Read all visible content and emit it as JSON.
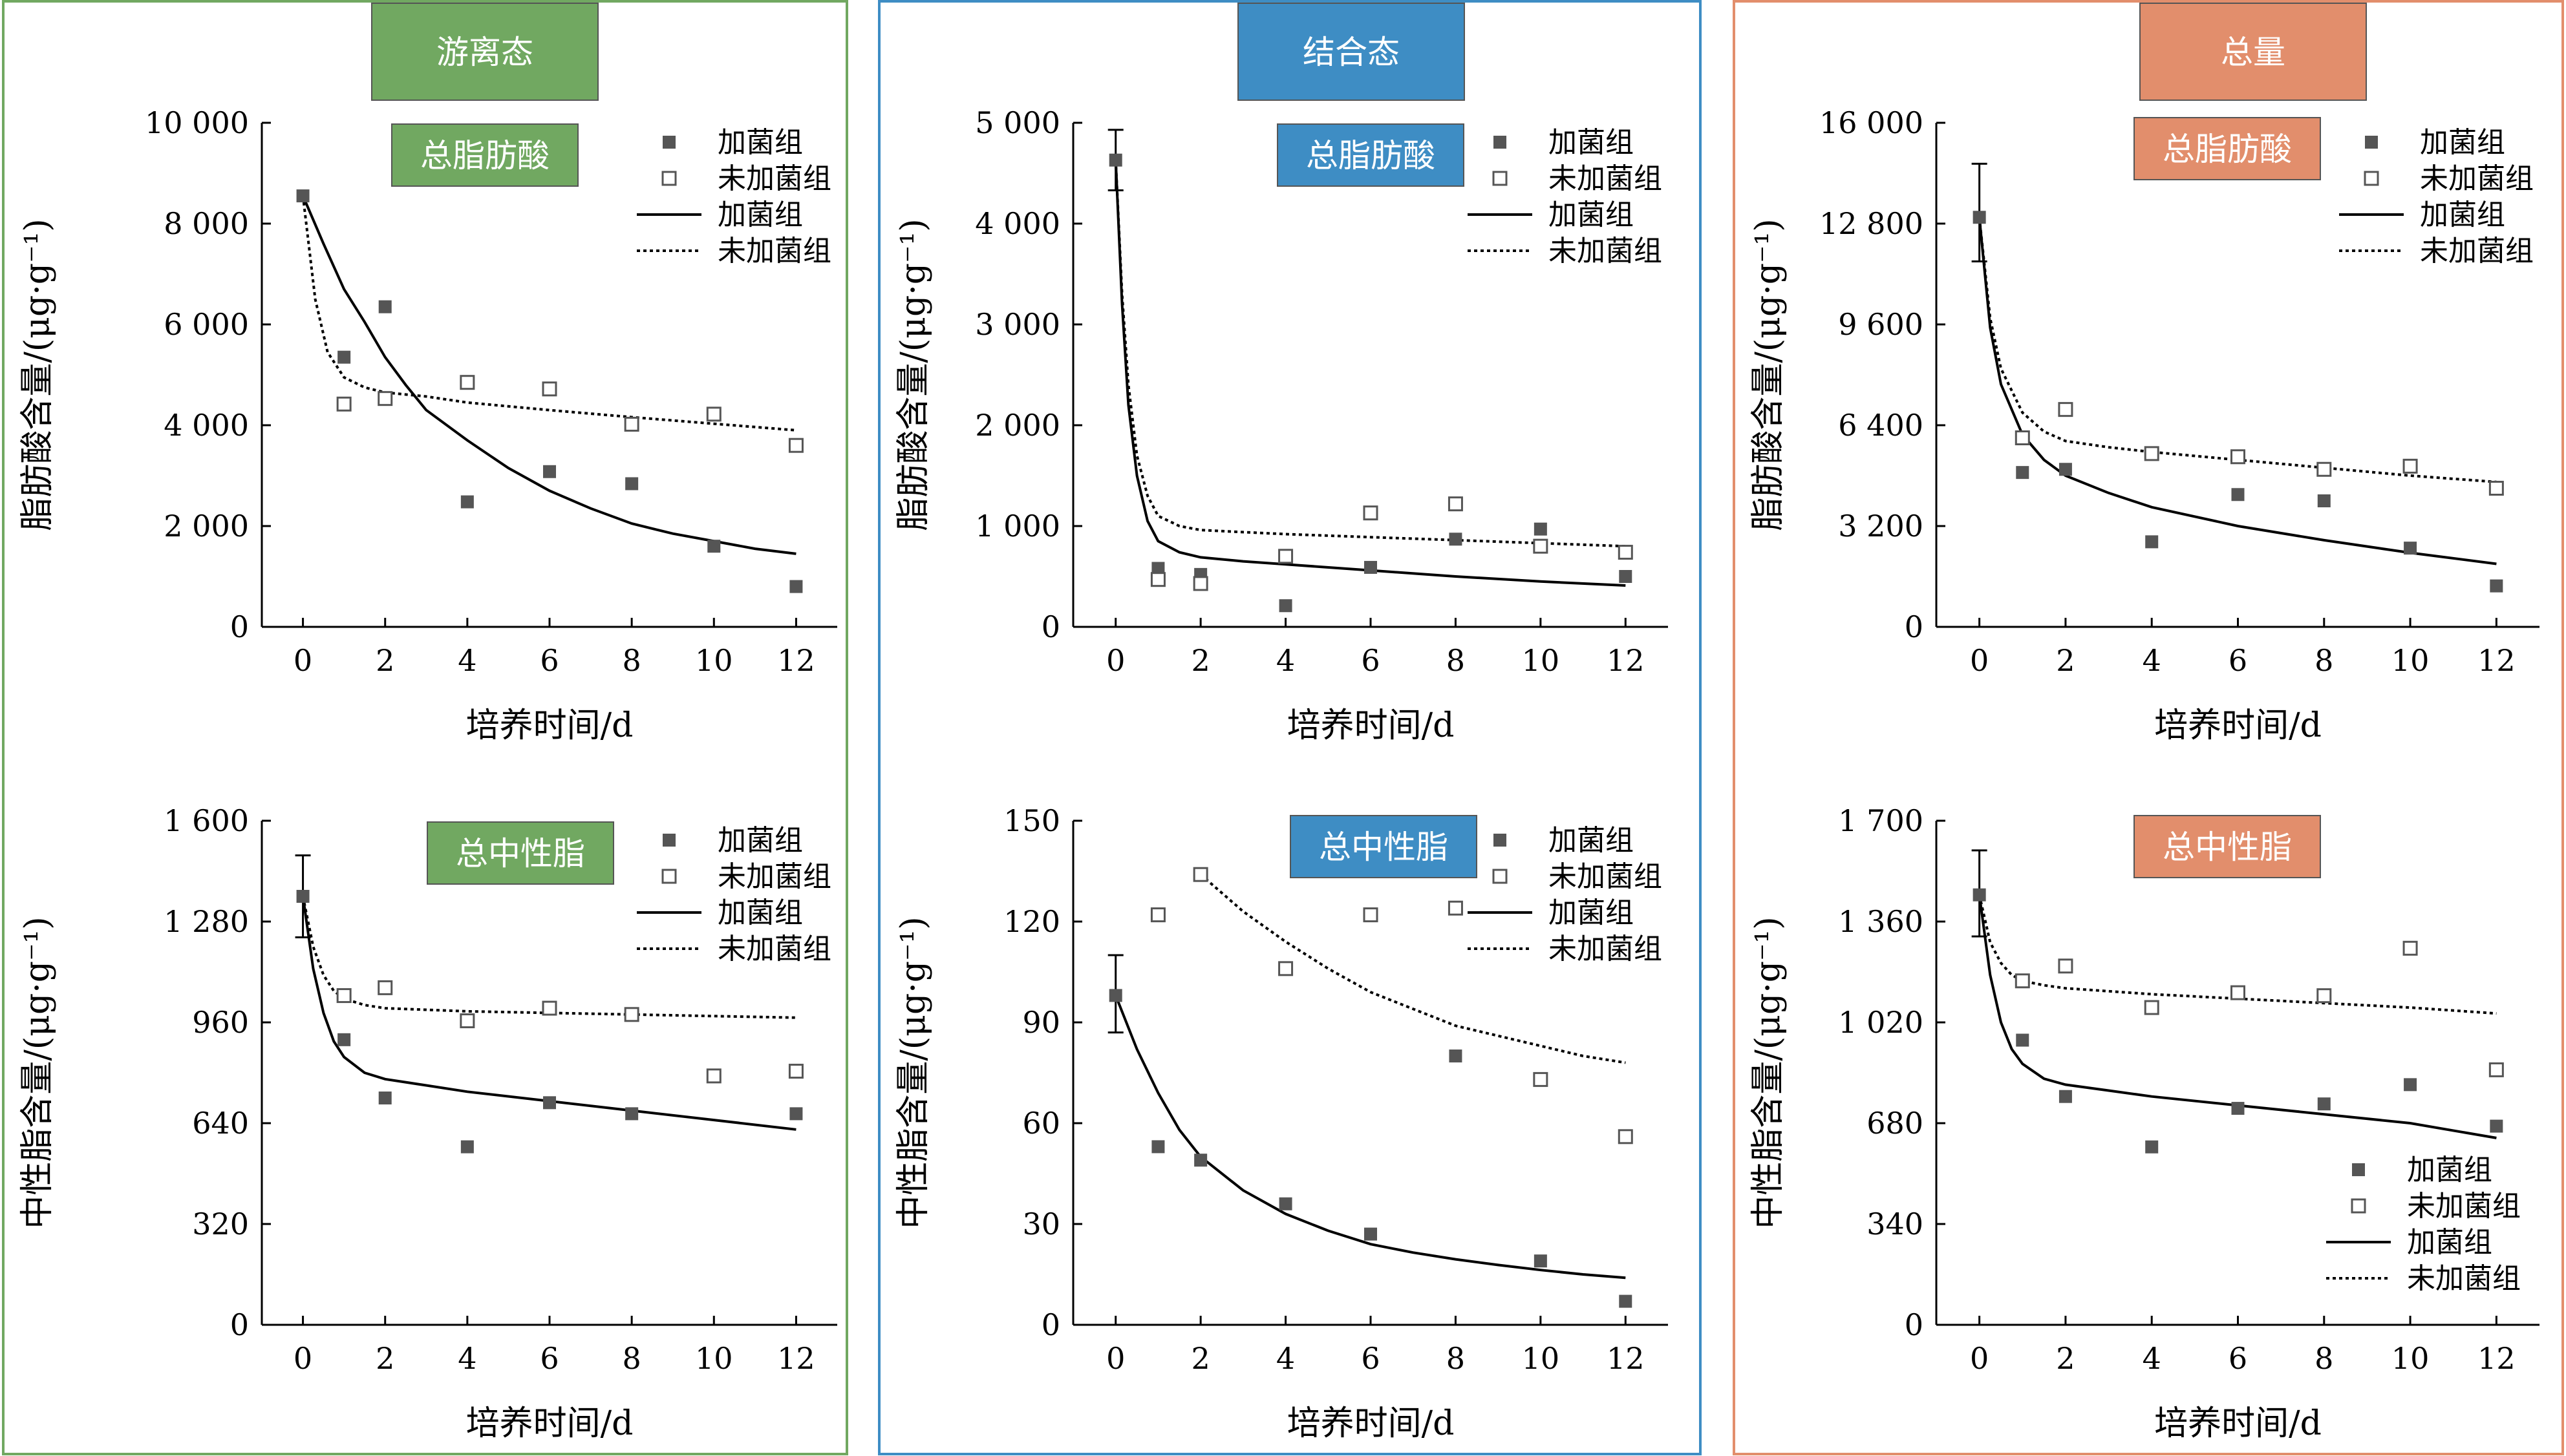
{
  "columns": [
    {
      "title": "游离态",
      "color": "#71A861"
    },
    {
      "title": "结合态",
      "color": "#3E8DC4"
    },
    {
      "title": "总量",
      "color": "#E28E6C"
    }
  ],
  "legend": {
    "series": [
      "加菌组",
      "未加菌组"
    ],
    "fits": [
      "加菌组",
      "未加菌组"
    ]
  },
  "colors": {
    "filled_marker": "#555555",
    "open_marker_stroke": "#555555",
    "fit_line": "#000000"
  },
  "chart_data": [
    {
      "type": "scatter",
      "column": 0,
      "row": 0,
      "label": "总脂肪酸",
      "xlabel": "培养时间/d",
      "ylabel": "脂肪酸含量/(μg·g⁻¹)",
      "xlim": [
        -1,
        13
      ],
      "ylim": [
        0,
        10000
      ],
      "xticks": [
        0,
        2,
        4,
        6,
        8,
        10,
        12
      ],
      "yticks": [
        0,
        2000,
        4000,
        6000,
        8000,
        10000
      ],
      "ytick_labels": [
        "0",
        "2 000",
        "4 000",
        "6 000",
        "8 000",
        "10 000"
      ],
      "legend_position": "top-right",
      "series": [
        {
          "name": "加菌组",
          "marker": "filled",
          "x": [
            0,
            1,
            2,
            4,
            6,
            8,
            10,
            12
          ],
          "y": [
            8550,
            5350,
            6350,
            2480,
            3080,
            2840,
            1600,
            800
          ]
        },
        {
          "name": "未加菌组",
          "marker": "open",
          "x": [
            1,
            2,
            4,
            6,
            8,
            10,
            12
          ],
          "y": [
            4420,
            4530,
            4850,
            4720,
            4020,
            4220,
            3600
          ]
        }
      ],
      "fits": [
        {
          "name": "加菌组",
          "style": "solid",
          "x": [
            0,
            0.5,
            1,
            1.5,
            2,
            2.5,
            3,
            4,
            5,
            6,
            7,
            8,
            9,
            10,
            11,
            12
          ],
          "y": [
            8550,
            7600,
            6700,
            6050,
            5350,
            4800,
            4300,
            3700,
            3150,
            2700,
            2350,
            2050,
            1850,
            1700,
            1550,
            1450
          ]
        },
        {
          "name": "未加菌组",
          "style": "dotted",
          "x": [
            0,
            0.3,
            0.6,
            1,
            1.5,
            2,
            3,
            4,
            6,
            8,
            10,
            12
          ],
          "y": [
            8550,
            6500,
            5450,
            4950,
            4750,
            4650,
            4570,
            4450,
            4300,
            4160,
            4030,
            3900
          ]
        }
      ],
      "error_bars": []
    },
    {
      "type": "scatter",
      "column": 1,
      "row": 0,
      "label": "总脂肪酸",
      "xlabel": "培养时间/d",
      "ylabel": "脂肪酸含量/(μg·g⁻¹)",
      "xlim": [
        -1,
        13
      ],
      "ylim": [
        0,
        5000
      ],
      "xticks": [
        0,
        2,
        4,
        6,
        8,
        10,
        12
      ],
      "yticks": [
        0,
        1000,
        2000,
        3000,
        4000,
        5000
      ],
      "ytick_labels": [
        "0",
        "1 000",
        "2 000",
        "3 000",
        "4 000",
        "5 000"
      ],
      "legend_position": "top-right",
      "series": [
        {
          "name": "加菌组",
          "marker": "filled",
          "x": [
            0,
            1,
            2,
            4,
            6,
            8,
            10,
            12
          ],
          "y": [
            4630,
            580,
            520,
            210,
            590,
            870,
            970,
            500
          ]
        },
        {
          "name": "未加菌组",
          "marker": "open",
          "x": [
            1,
            2,
            4,
            6,
            8,
            10,
            12
          ],
          "y": [
            470,
            430,
            700,
            1130,
            1220,
            800,
            740
          ]
        }
      ],
      "fits": [
        {
          "name": "加菌组",
          "style": "solid",
          "x": [
            0,
            0.15,
            0.3,
            0.5,
            0.75,
            1,
            1.5,
            2,
            3,
            4,
            6,
            8,
            10,
            12
          ],
          "y": [
            4630,
            3200,
            2200,
            1500,
            1050,
            850,
            740,
            690,
            650,
            620,
            560,
            500,
            450,
            410
          ]
        },
        {
          "name": "未加菌组",
          "style": "dotted",
          "x": [
            0,
            0.15,
            0.3,
            0.5,
            0.75,
            1,
            1.5,
            2,
            3,
            4,
            6,
            8,
            10,
            12
          ],
          "y": [
            4630,
            3300,
            2400,
            1700,
            1300,
            1100,
            1000,
            960,
            940,
            920,
            890,
            860,
            830,
            800
          ]
        }
      ],
      "error_bars": [
        {
          "x": 0,
          "low": 4330,
          "high": 4930
        }
      ]
    },
    {
      "type": "scatter",
      "column": 2,
      "row": 0,
      "label": "总脂肪酸",
      "xlabel": "培养时间/d",
      "ylabel": "脂肪酸含量/(μg·g⁻¹)",
      "xlim": [
        -1,
        13
      ],
      "ylim": [
        0,
        16000
      ],
      "xticks": [
        0,
        2,
        4,
        6,
        8,
        10,
        12
      ],
      "yticks": [
        0,
        3200,
        6400,
        9600,
        12800,
        16000
      ],
      "ytick_labels": [
        "0",
        "3 200",
        "6 400",
        "9 600",
        "12 800",
        "16 000"
      ],
      "legend_position": "top-right",
      "series": [
        {
          "name": "加菌组",
          "marker": "filled",
          "x": [
            0,
            1,
            2,
            4,
            6,
            8,
            10,
            12
          ],
          "y": [
            13000,
            4900,
            5000,
            2700,
            4200,
            4000,
            2500,
            1300
          ]
        },
        {
          "name": "未加菌组",
          "marker": "open",
          "x": [
            1,
            2,
            4,
            6,
            8,
            10,
            12
          ],
          "y": [
            6000,
            6900,
            5500,
            5400,
            5000,
            5100,
            4400
          ]
        }
      ],
      "fits": [
        {
          "name": "加菌组",
          "style": "solid",
          "x": [
            0,
            0.25,
            0.5,
            1,
            1.5,
            2,
            3,
            4,
            6,
            8,
            10,
            12
          ],
          "y": [
            13000,
            9500,
            7700,
            6100,
            5300,
            4800,
            4250,
            3800,
            3200,
            2750,
            2350,
            2000
          ]
        },
        {
          "name": "未加菌组",
          "style": "dotted",
          "x": [
            0,
            0.25,
            0.5,
            1,
            1.5,
            2,
            3,
            4,
            6,
            8,
            10,
            12
          ],
          "y": [
            13000,
            9800,
            8200,
            6800,
            6200,
            5900,
            5700,
            5550,
            5300,
            5050,
            4800,
            4600
          ]
        }
      ],
      "error_bars": [
        {
          "x": 0,
          "low": 11600,
          "high": 14700
        }
      ]
    },
    {
      "type": "scatter",
      "column": 0,
      "row": 1,
      "label": "总中性脂",
      "xlabel": "培养时间/d",
      "ylabel": "中性脂含量/(μg·g⁻¹)",
      "xlim": [
        -1,
        13
      ],
      "ylim": [
        0,
        1600
      ],
      "xticks": [
        0,
        2,
        4,
        6,
        8,
        10,
        12
      ],
      "yticks": [
        0,
        320,
        640,
        960,
        1280,
        1600
      ],
      "ytick_labels": [
        "0",
        "320",
        "640",
        "960",
        "1 280",
        "1 600"
      ],
      "legend_position": "top-right",
      "series": [
        {
          "name": "加菌组",
          "marker": "filled",
          "x": [
            0,
            1,
            2,
            4,
            6,
            8,
            10,
            12
          ],
          "y": [
            1360,
            905,
            720,
            565,
            705,
            670,
            790,
            670
          ]
        },
        {
          "name": "未加菌组",
          "marker": "open",
          "x": [
            1,
            2,
            4,
            6,
            8,
            10,
            12
          ],
          "y": [
            1045,
            1070,
            965,
            1005,
            985,
            790,
            805
          ]
        }
      ],
      "fits": [
        {
          "name": "加菌组",
          "style": "solid",
          "x": [
            0,
            0.25,
            0.5,
            0.75,
            1,
            1.5,
            2,
            3,
            4,
            6,
            8,
            10,
            12
          ],
          "y": [
            1360,
            1130,
            990,
            900,
            850,
            800,
            780,
            760,
            740,
            710,
            680,
            650,
            620
          ]
        },
        {
          "name": "未加菌组",
          "style": "dotted",
          "x": [
            0,
            0.25,
            0.5,
            0.75,
            1,
            1.5,
            2,
            3,
            4,
            6,
            8,
            10,
            12
          ],
          "y": [
            1360,
            1200,
            1110,
            1060,
            1035,
            1015,
            1005,
            1000,
            995,
            990,
            985,
            980,
            975
          ]
        }
      ],
      "error_bars": [
        {
          "x": 0,
          "low": 1230,
          "high": 1490
        }
      ]
    },
    {
      "type": "scatter",
      "column": 1,
      "row": 1,
      "label": "总中性脂",
      "xlabel": "培养时间/d",
      "ylabel": "中性脂含量/(μg·g⁻¹)",
      "xlim": [
        -1,
        13
      ],
      "ylim": [
        0,
        150
      ],
      "xticks": [
        0,
        2,
        4,
        6,
        8,
        10,
        12
      ],
      "yticks": [
        0,
        30,
        60,
        90,
        120,
        150
      ],
      "ytick_labels": [
        "0",
        "30",
        "60",
        "90",
        "120",
        "150"
      ],
      "legend_position": "top-right",
      "series": [
        {
          "name": "加菌组",
          "marker": "filled",
          "x": [
            0,
            1,
            2,
            4,
            6,
            8,
            10,
            12
          ],
          "y": [
            98,
            53,
            49,
            36,
            27,
            80,
            19,
            7
          ]
        },
        {
          "name": "未加菌组",
          "marker": "open",
          "x": [
            1,
            2,
            4,
            6,
            8,
            10,
            12
          ],
          "y": [
            122,
            134,
            106,
            122,
            124,
            73,
            56
          ]
        }
      ],
      "fits": [
        {
          "name": "加菌组",
          "style": "solid",
          "x": [
            0,
            0.5,
            1,
            1.5,
            2,
            3,
            4,
            5,
            6,
            7,
            8,
            9,
            10,
            11,
            12
          ],
          "y": [
            98,
            82,
            69,
            58,
            50,
            40,
            33,
            28,
            24,
            21.5,
            19.5,
            17.8,
            16.3,
            15,
            14
          ]
        },
        {
          "name": "未加菌组",
          "style": "dotted",
          "x": [
            2,
            3,
            4,
            5,
            6,
            7,
            8,
            9,
            10,
            11,
            12
          ],
          "y": [
            134,
            123,
            114,
            106,
            99,
            94,
            89,
            86,
            83,
            80,
            78
          ]
        }
      ],
      "error_bars": [
        {
          "x": 0,
          "low": 87,
          "high": 110
        }
      ]
    },
    {
      "type": "scatter",
      "column": 2,
      "row": 1,
      "label": "总中性脂",
      "xlabel": "培养时间/d",
      "ylabel": "中性脂含量/(μg·g⁻¹)",
      "xlim": [
        -1,
        13
      ],
      "ylim": [
        0,
        1700
      ],
      "xticks": [
        0,
        2,
        4,
        6,
        8,
        10,
        12
      ],
      "yticks": [
        0,
        340,
        680,
        1020,
        1360,
        1700
      ],
      "ytick_labels": [
        "0",
        "340",
        "680",
        "1 020",
        "1 360",
        "1 700"
      ],
      "legend_position": "bottom-right",
      "series": [
        {
          "name": "加菌组",
          "marker": "filled",
          "x": [
            0,
            1,
            2,
            4,
            6,
            8,
            10,
            12
          ],
          "y": [
            1450,
            960,
            770,
            600,
            730,
            745,
            810,
            670
          ]
        },
        {
          "name": "未加菌组",
          "marker": "open",
          "x": [
            1,
            2,
            4,
            6,
            8,
            10,
            12
          ],
          "y": [
            1160,
            1210,
            1070,
            1120,
            1110,
            1270,
            860
          ]
        }
      ],
      "fits": [
        {
          "name": "加菌组",
          "style": "solid",
          "x": [
            0,
            0.25,
            0.5,
            0.75,
            1,
            1.5,
            2,
            3,
            4,
            6,
            8,
            10,
            12
          ],
          "y": [
            1450,
            1180,
            1020,
            930,
            880,
            830,
            810,
            790,
            770,
            740,
            710,
            680,
            630
          ]
        },
        {
          "name": "未加菌组",
          "style": "dotted",
          "x": [
            0,
            0.25,
            0.5,
            0.75,
            1,
            1.5,
            2,
            3,
            4,
            6,
            8,
            10,
            12
          ],
          "y": [
            1450,
            1290,
            1220,
            1180,
            1160,
            1145,
            1135,
            1125,
            1115,
            1100,
            1085,
            1070,
            1050
          ]
        }
      ],
      "error_bars": [
        {
          "x": 0,
          "low": 1310,
          "high": 1600
        }
      ]
    }
  ]
}
